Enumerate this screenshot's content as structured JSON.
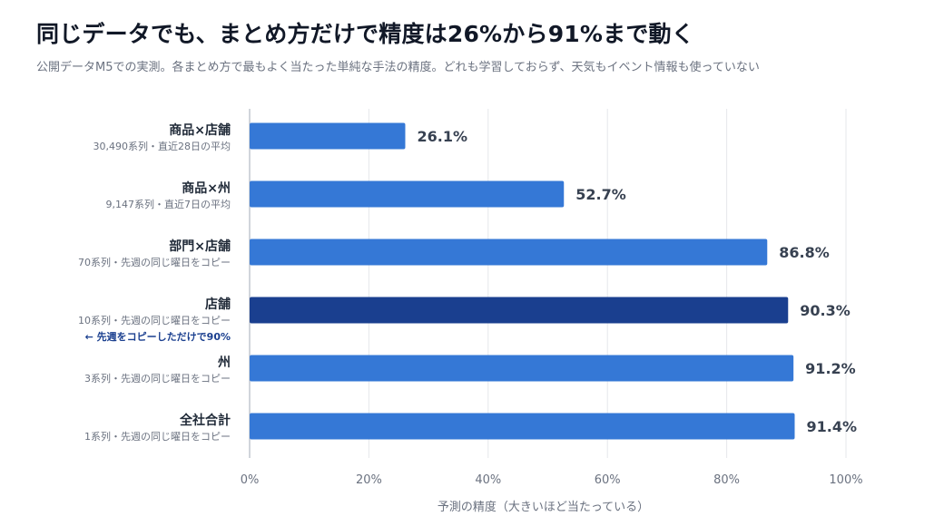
{
  "title": "同じデータでも、まとめ方だけで精度は26%から91%まで動く",
  "subtitle": "公開データM5での実測。各まとめ方で最もよく当たった単純な手法の精度。どれも学習しておらず、天気もイベント情報も使っていない",
  "colors": {
    "bar": "#3578d6",
    "bar_highlight": "#1a3f8f",
    "note": "#1a3f8f",
    "grid": "#e5e7eb",
    "axis": "#d1d5db"
  },
  "chart_data": {
    "type": "bar",
    "orientation": "horizontal",
    "title": "同じデータでも、まとめ方だけで精度は26%から91%まで動く",
    "subtitle": "公開データM5での実測。各まとめ方で最もよく当たった単純な手法の精度。どれも学習しておらず、天気もイベント情報も使っていない",
    "xlabel": "予測の精度（大きいほど当たっている）",
    "ylabel": "",
    "xlim": [
      0,
      100
    ],
    "x_ticks": [
      "0%",
      "20%",
      "40%",
      "60%",
      "80%",
      "100%"
    ],
    "grid": "vertical",
    "categories": [
      {
        "label": "商品×店舗",
        "sublabel": "30,490系列・直近28日の平均",
        "value": 26.1,
        "value_label": "26.1%",
        "highlight": false,
        "note": ""
      },
      {
        "label": "商品×州",
        "sublabel": "9,147系列・直近7日の平均",
        "value": 52.7,
        "value_label": "52.7%",
        "highlight": false,
        "note": ""
      },
      {
        "label": "部門×店舗",
        "sublabel": "70系列・先週の同じ曜日をコピー",
        "value": 86.8,
        "value_label": "86.8%",
        "highlight": false,
        "note": ""
      },
      {
        "label": "店舗",
        "sublabel": "10系列・先週の同じ曜日をコピー",
        "value": 90.3,
        "value_label": "90.3%",
        "highlight": true,
        "note": "← 先週をコピーしただけで90%"
      },
      {
        "label": "州",
        "sublabel": "3系列・先週の同じ曜日をコピー",
        "value": 91.2,
        "value_label": "91.2%",
        "highlight": false,
        "note": ""
      },
      {
        "label": "全社合計",
        "sublabel": "1系列・先週の同じ曜日をコピー",
        "value": 91.4,
        "value_label": "91.4%",
        "highlight": false,
        "note": ""
      }
    ]
  }
}
